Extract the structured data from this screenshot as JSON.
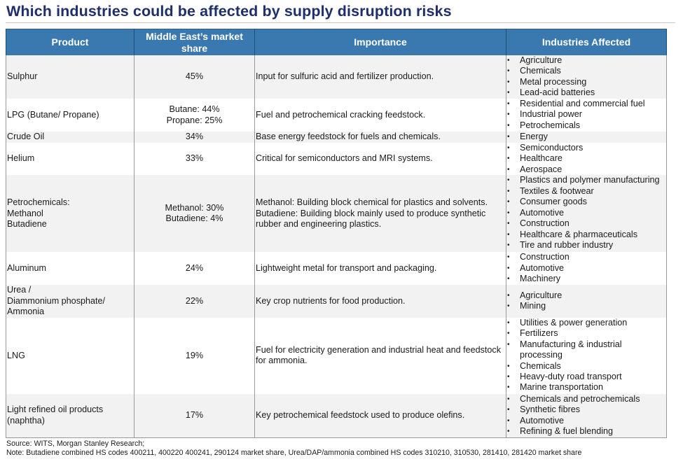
{
  "title": "Which industries could be affected by supply disruption risks",
  "table": {
    "headers": [
      "Product",
      "Middle East’s market share",
      "Importance",
      "Industries Affected"
    ],
    "rows": [
      {
        "product": "Sulphur",
        "share": "45%",
        "importance": "Input for sulfuric acid and fertilizer production.",
        "industries": [
          "Agriculture",
          "Chemicals",
          "Metal processing",
          "Lead-acid batteries"
        ]
      },
      {
        "product": "LPG (Butane/ Propane)",
        "share": "Butane: 44%\nPropane: 25%",
        "importance": "Fuel and petrochemical cracking feedstock.",
        "industries": [
          "Residential and commercial fuel",
          "Industrial power",
          "Petrochemicals"
        ]
      },
      {
        "product": "Crude Oil",
        "share": "34%",
        "importance": "Base energy feedstock for fuels and chemicals.",
        "industries": [
          "Energy"
        ]
      },
      {
        "product": "Helium",
        "share": "33%",
        "importance": "Critical for semiconductors and MRI systems.",
        "industries": [
          "Semiconductors",
          "Healthcare",
          "Aerospace"
        ]
      },
      {
        "product": "Petrochemicals:\n Methanol\n Butadiene",
        "share": "Methanol: 30%\nButadiene: 4%",
        "importance": "Methanol: Building block chemical for plastics and solvents.\nButadiene: Building block mainly used to produce synthetic rubber and engineering plastics.",
        "industries": [
          "Plastics and polymer manufacturing",
          "Textiles & footwear",
          "Consumer goods",
          "Automotive",
          "Construction",
          "Healthcare & pharmaceuticals",
          "Tire and rubber industry"
        ]
      },
      {
        "product": "Aluminum",
        "share": "24%",
        "importance": "Lightweight metal for transport and packaging.",
        "industries": [
          "Construction",
          "Automotive",
          "Machinery"
        ]
      },
      {
        "product": "Urea /\nDiammonium phosphate/\nAmmonia",
        "share": "22%",
        "importance": "Key crop nutrients for food production.",
        "industries": [
          "Agriculture",
          "Mining"
        ]
      },
      {
        "product": "LNG",
        "share": "19%",
        "importance": "Fuel for electricity generation and industrial heat and feedstock for ammonia.",
        "industries": [
          "Utilities & power generation",
          "Fertilizers",
          "Manufacturing & industrial processing",
          "Chemicals",
          "Heavy-duty road transport",
          "Marine transportation"
        ]
      },
      {
        "product": "Light refined oil products\n(naphtha)",
        "share": "17%",
        "importance": "Key petrochemical feedstock used to produce olefins.",
        "industries": [
          "Chemicals and petrochemicals",
          "Synthetic fibres",
          "Automotive",
          "Refining & fuel blending"
        ]
      }
    ]
  },
  "footnote": {
    "source": "Source: WITS, Morgan Stanley Research;",
    "note": "Note: Butadiene combined HS codes 400211, 400220 400241, 290124 market share, Urea/DAP/ammonia combined HS codes 310210, 310530, 281410, 281420 market share"
  },
  "icons": {
    "bullet": "•"
  },
  "colors": {
    "title": "#1f2f6b",
    "header_bg": "#3a78b0",
    "row_shade": "#f2f2f2"
  }
}
